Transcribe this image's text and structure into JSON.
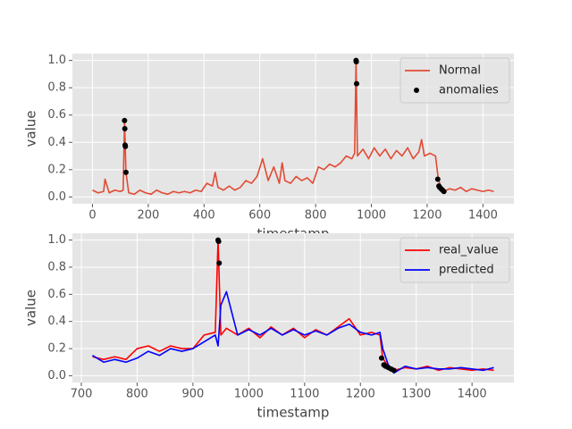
{
  "chart_data": [
    {
      "type": "line",
      "xlabel": "timestamp",
      "ylabel": "value",
      "grid": true,
      "legend": "upper right",
      "xlim": [
        -72,
        1511
      ],
      "ylim": [
        -0.05,
        1.05
      ],
      "xticks": [
        0,
        200,
        400,
        600,
        800,
        1000,
        1200,
        1400
      ],
      "yticks": [
        {
          "value": 0,
          "label": "0.0"
        },
        {
          "value": 0.2,
          "label": "0.2"
        },
        {
          "value": 0.4,
          "label": "0.4"
        },
        {
          "value": 0.6,
          "label": "0.6"
        },
        {
          "value": 0.8,
          "label": "0.8"
        },
        {
          "value": 1,
          "label": "1.0"
        }
      ],
      "series": [
        {
          "name": "Normal",
          "type": "line",
          "color": "#e24a33",
          "x": [
            0,
            20,
            40,
            45,
            60,
            80,
            100,
            110,
            115,
            120,
            130,
            150,
            170,
            190,
            210,
            230,
            250,
            270,
            290,
            310,
            330,
            350,
            370,
            390,
            410,
            430,
            440,
            450,
            470,
            490,
            510,
            530,
            550,
            570,
            590,
            610,
            620,
            630,
            650,
            670,
            680,
            690,
            710,
            730,
            750,
            770,
            790,
            810,
            830,
            850,
            870,
            890,
            910,
            930,
            940,
            945,
            950,
            970,
            990,
            1010,
            1030,
            1050,
            1070,
            1090,
            1110,
            1130,
            1150,
            1170,
            1180,
            1190,
            1210,
            1230,
            1240,
            1250,
            1260,
            1280,
            1300,
            1320,
            1340,
            1360,
            1380,
            1400,
            1420,
            1439
          ],
          "values": [
            0.05,
            0.03,
            0.04,
            0.13,
            0.03,
            0.05,
            0.04,
            0.05,
            0.56,
            0.18,
            0.03,
            0.02,
            0.05,
            0.03,
            0.02,
            0.05,
            0.03,
            0.02,
            0.04,
            0.03,
            0.04,
            0.03,
            0.05,
            0.04,
            0.1,
            0.08,
            0.18,
            0.07,
            0.05,
            0.08,
            0.05,
            0.07,
            0.12,
            0.1,
            0.15,
            0.28,
            0.2,
            0.12,
            0.22,
            0.1,
            0.25,
            0.12,
            0.1,
            0.15,
            0.12,
            0.14,
            0.1,
            0.22,
            0.2,
            0.24,
            0.22,
            0.25,
            0.3,
            0.28,
            0.32,
            1.0,
            0.3,
            0.35,
            0.28,
            0.36,
            0.3,
            0.35,
            0.28,
            0.34,
            0.3,
            0.36,
            0.28,
            0.33,
            0.42,
            0.3,
            0.32,
            0.3,
            0.13,
            0.07,
            0.04,
            0.06,
            0.05,
            0.07,
            0.04,
            0.06,
            0.05,
            0.04,
            0.05,
            0.04
          ]
        },
        {
          "name": "anomalies",
          "type": "scatter",
          "color": "#000000",
          "x": [
            115,
            116,
            117,
            118,
            120,
            945,
            946,
            947,
            1238,
            1242,
            1245,
            1250,
            1255,
            1260
          ],
          "values": [
            0.56,
            0.5,
            0.38,
            0.37,
            0.18,
            1.0,
            0.99,
            0.83,
            0.13,
            0.08,
            0.07,
            0.06,
            0.05,
            0.04
          ]
        }
      ]
    },
    {
      "type": "line",
      "xlabel": "timestamp",
      "ylabel": "value",
      "grid": true,
      "legend": "upper right",
      "xlim": [
        684,
        1475
      ],
      "ylim": [
        -0.05,
        1.05
      ],
      "xticks": [
        700,
        800,
        900,
        1000,
        1100,
        1200,
        1300,
        1400
      ],
      "yticks": [
        {
          "value": 0,
          "label": "0.0"
        },
        {
          "value": 0.2,
          "label": "0.2"
        },
        {
          "value": 0.4,
          "label": "0.4"
        },
        {
          "value": 0.6,
          "label": "0.6"
        },
        {
          "value": 0.8,
          "label": "0.8"
        },
        {
          "value": 1,
          "label": "1.0"
        }
      ],
      "series": [
        {
          "name": "real_value",
          "type": "line",
          "color": "#ff0000",
          "x": [
            720,
            740,
            760,
            780,
            800,
            820,
            840,
            860,
            880,
            900,
            920,
            940,
            945,
            950,
            960,
            980,
            1000,
            1020,
            1040,
            1060,
            1080,
            1100,
            1120,
            1140,
            1160,
            1180,
            1200,
            1220,
            1235,
            1240,
            1250,
            1260,
            1280,
            1300,
            1320,
            1340,
            1360,
            1380,
            1400,
            1420,
            1439
          ],
          "values": [
            0.14,
            0.12,
            0.14,
            0.12,
            0.2,
            0.22,
            0.18,
            0.22,
            0.2,
            0.2,
            0.3,
            0.32,
            1.0,
            0.3,
            0.35,
            0.3,
            0.35,
            0.28,
            0.36,
            0.3,
            0.35,
            0.28,
            0.34,
            0.3,
            0.36,
            0.42,
            0.3,
            0.32,
            0.3,
            0.13,
            0.07,
            0.04,
            0.06,
            0.05,
            0.07,
            0.04,
            0.06,
            0.05,
            0.04,
            0.05,
            0.04
          ]
        },
        {
          "name": "predicted",
          "type": "line",
          "color": "#0000ff",
          "x": [
            720,
            740,
            760,
            780,
            800,
            820,
            840,
            860,
            880,
            900,
            920,
            940,
            945,
            950,
            960,
            980,
            1000,
            1020,
            1040,
            1060,
            1080,
            1100,
            1120,
            1140,
            1160,
            1180,
            1200,
            1220,
            1235,
            1240,
            1250,
            1260,
            1280,
            1300,
            1320,
            1340,
            1360,
            1380,
            1400,
            1420,
            1439
          ],
          "values": [
            0.15,
            0.1,
            0.12,
            0.1,
            0.13,
            0.18,
            0.15,
            0.2,
            0.18,
            0.2,
            0.25,
            0.3,
            0.22,
            0.52,
            0.62,
            0.3,
            0.34,
            0.3,
            0.35,
            0.3,
            0.34,
            0.3,
            0.33,
            0.3,
            0.35,
            0.38,
            0.32,
            0.3,
            0.32,
            0.2,
            0.08,
            0.02,
            0.07,
            0.05,
            0.06,
            0.05,
            0.05,
            0.06,
            0.05,
            0.04,
            0.06
          ]
        },
        {
          "type": "scatter",
          "color": "#000000",
          "x": [
            945,
            946,
            947,
            1238,
            1242,
            1245,
            1250,
            1255,
            1260
          ],
          "values": [
            1.0,
            0.99,
            0.83,
            0.13,
            0.08,
            0.07,
            0.06,
            0.05,
            0.04
          ]
        }
      ]
    }
  ]
}
